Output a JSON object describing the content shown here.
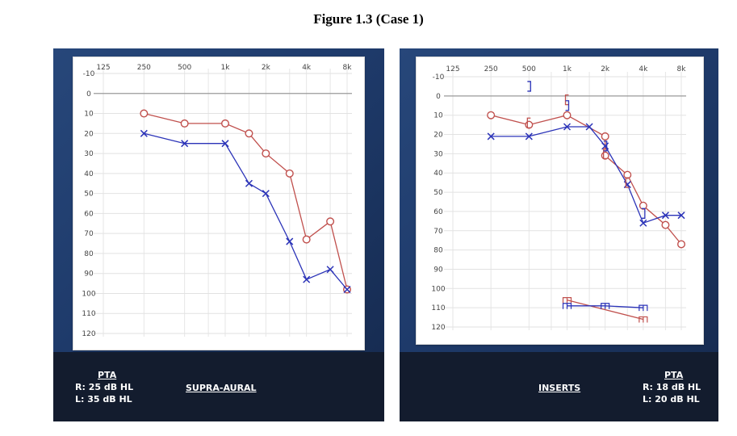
{
  "figure_title": "Figure 1.3 (Case 1)",
  "colors": {
    "right_ear": "#c0504d",
    "left_ear": "#2b33b8",
    "panel_bg": "#22406f",
    "footer_bg": "#131c2e"
  },
  "chart_data": [
    {
      "type": "line",
      "id": "supra-aural",
      "x_tick_labels": [
        "125",
        "250",
        "500",
        "1k",
        "2k",
        "4k",
        "8k"
      ],
      "y_tick_labels": [
        "-10",
        "0",
        "10",
        "20",
        "30",
        "40",
        "50",
        "60",
        "70",
        "80",
        "90",
        "100",
        "110",
        "120"
      ],
      "ylim": [
        -10,
        120
      ],
      "y_reversed": true,
      "grid": true,
      "series": [
        {
          "ear": "right",
          "symbol": "circle",
          "color": "#c0504d",
          "points": [
            [
              250,
              10
            ],
            [
              500,
              15
            ],
            [
              1000,
              15
            ],
            [
              1500,
              20
            ],
            [
              2000,
              30
            ],
            [
              3000,
              40
            ],
            [
              4000,
              73
            ],
            [
              6000,
              64
            ],
            [
              8000,
              98
            ]
          ]
        },
        {
          "ear": "left",
          "symbol": "cross",
          "color": "#2b33b8",
          "points": [
            [
              250,
              20
            ],
            [
              500,
              25
            ],
            [
              1000,
              25
            ],
            [
              1500,
              45
            ],
            [
              2000,
              50
            ],
            [
              3000,
              74
            ],
            [
              4000,
              93
            ],
            [
              6000,
              88
            ],
            [
              8000,
              98
            ]
          ]
        }
      ],
      "footer": {
        "pta_label": "PTA",
        "pta_right": "R: 25 dB HL",
        "pta_left": "L: 35 dB HL",
        "transducer": "SUPRA-AURAL"
      }
    },
    {
      "type": "line",
      "id": "inserts",
      "x_tick_labels": [
        "125",
        "250",
        "500",
        "1k",
        "2k",
        "4k",
        "8k"
      ],
      "y_tick_labels": [
        "-10",
        "0",
        "10",
        "20",
        "30",
        "40",
        "50",
        "60",
        "70",
        "80",
        "90",
        "100",
        "110",
        "120"
      ],
      "ylim": [
        -10,
        120
      ],
      "y_reversed": true,
      "grid": true,
      "series": [
        {
          "ear": "right",
          "symbol": "circle",
          "color": "#c0504d",
          "points": [
            [
              250,
              10
            ],
            [
              500,
              15
            ],
            [
              1000,
              10
            ],
            [
              2000,
              21
            ],
            [
              2000,
              31
            ],
            [
              3000,
              41
            ],
            [
              4000,
              57
            ],
            [
              6000,
              67
            ],
            [
              8000,
              77
            ]
          ]
        },
        {
          "ear": "left",
          "symbol": "cross",
          "color": "#2b33b8",
          "points": [
            [
              250,
              21
            ],
            [
              500,
              21
            ],
            [
              1000,
              16
            ],
            [
              1500,
              16
            ],
            [
              2000,
              26
            ],
            [
              3000,
              46
            ],
            [
              4000,
              66
            ],
            [
              6000,
              62
            ],
            [
              8000,
              62
            ]
          ]
        },
        {
          "ear": "right",
          "symbol": "bracket-open",
          "color": "#c0504d",
          "points": [
            [
              500,
              14
            ],
            [
              1000,
              2
            ],
            [
              2000,
              30
            ],
            [
              3000,
              45
            ]
          ]
        },
        {
          "ear": "left",
          "symbol": "bracket-close",
          "color": "#2b33b8",
          "points": [
            [
              500,
              -5
            ],
            [
              1000,
              5
            ],
            [
              2000,
              26
            ],
            [
              4000,
              61
            ]
          ]
        },
        {
          "ear": "right",
          "symbol": "m-shape",
          "color": "#c0504d",
          "points": [
            [
              1000,
              106
            ],
            [
              4000,
              116
            ]
          ]
        },
        {
          "ear": "left",
          "symbol": "m-shape",
          "color": "#2b33b8",
          "points": [
            [
              1000,
              109
            ],
            [
              2000,
              109
            ],
            [
              4000,
              110
            ]
          ]
        }
      ],
      "footer": {
        "pta_label": "PTA",
        "pta_right": "R: 18 dB HL",
        "pta_left": "L: 20 dB HL",
        "transducer": "INSERTS"
      }
    }
  ]
}
